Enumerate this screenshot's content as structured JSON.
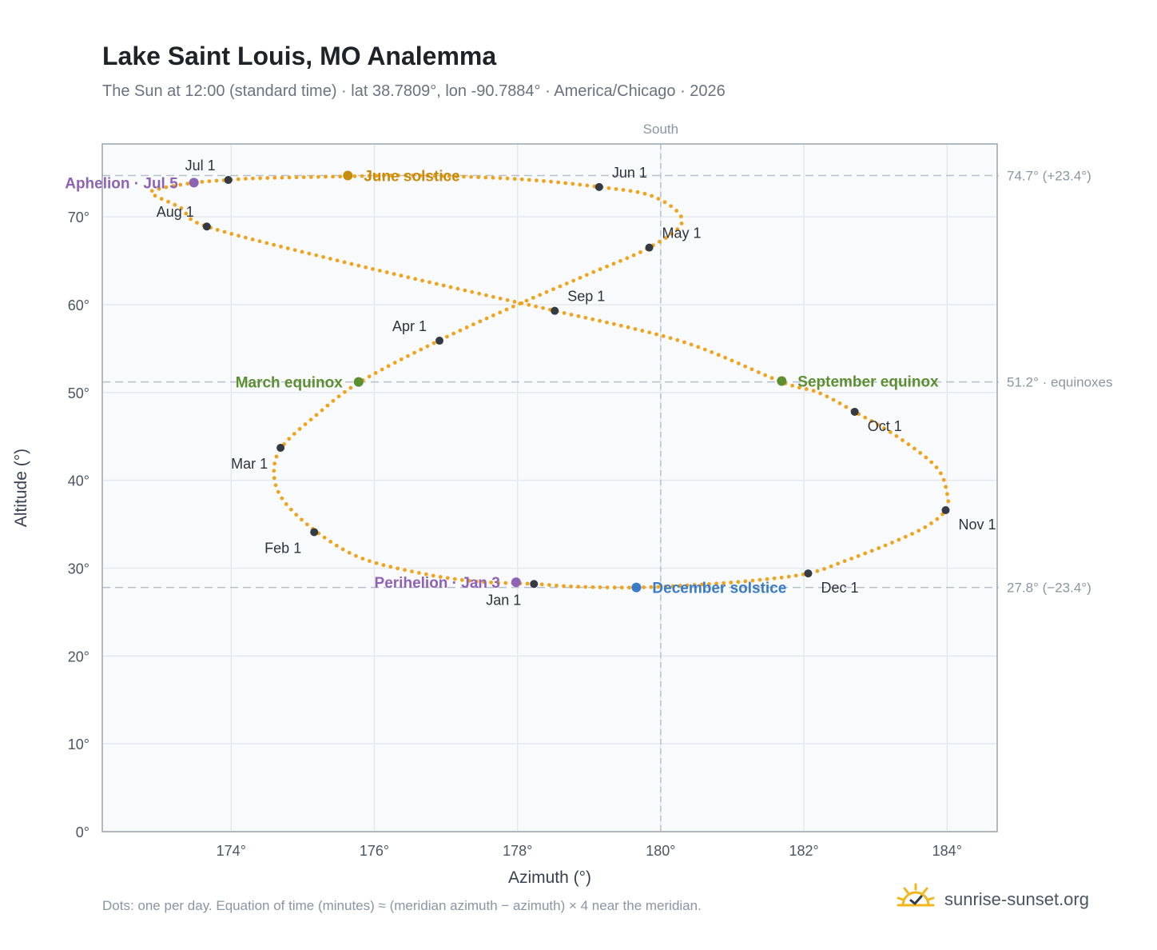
{
  "header": {
    "title": "Lake Saint Louis, MO Analemma",
    "subtitle": "The Sun at 12:00 (standard time) · lat 38.7809°, lon -90.7884° · America/Chicago · 2026"
  },
  "footer": {
    "note": "Dots: one per day. Equation of time (minutes) ≈ (meridian azimuth − azimuth) × 4 near the meridian.",
    "brand": "sunrise-sunset.org",
    "brand_icon": "sun-check-icon"
  },
  "colors": {
    "curve": "#f2a31c",
    "month_marker": "#333a44",
    "aphelion": "#8e63b5",
    "perihelion": "#8e63b5",
    "june_solstice": "#c98b0b",
    "equinox": "#5b8f2f",
    "december_solstice": "#3a7bc8",
    "guide": "#b8c0ca",
    "plot_bg": "#f8fafc",
    "grid": "#e5e9ee"
  },
  "chart_data": {
    "type": "scatter",
    "title": "Lake Saint Louis, MO Analemma",
    "xlabel": "Azimuth (°)",
    "ylabel": "Altitude (°)",
    "xlim": [
      172.2,
      184.7
    ],
    "ylim": [
      0,
      78.3
    ],
    "x_ticks": [
      174,
      176,
      178,
      180,
      182,
      184
    ],
    "x_tick_labels": [
      "174°",
      "176°",
      "178°",
      "180°",
      "182°",
      "184°"
    ],
    "y_ticks": [
      0,
      10,
      20,
      30,
      40,
      50,
      60,
      70
    ],
    "y_tick_labels": [
      "0°",
      "10°",
      "20°",
      "30°",
      "40°",
      "50°",
      "60°",
      "70°"
    ],
    "grid": true,
    "meridian": {
      "azimuth": 180,
      "label": "South"
    },
    "reference_lines": [
      {
        "altitude": 74.7,
        "label": "74.7° (+23.4°)"
      },
      {
        "altitude": 51.2,
        "label": "51.2° · equinoxes"
      },
      {
        "altitude": 27.8,
        "label": "27.8° (−23.4°)"
      }
    ],
    "curve_points": [
      [
        178.24,
        28.2
      ],
      [
        177.4,
        28.5
      ],
      [
        176.6,
        29.5
      ],
      [
        175.8,
        31.2
      ],
      [
        175.2,
        34.1
      ],
      [
        174.75,
        37.5
      ],
      [
        174.6,
        40.5
      ],
      [
        174.7,
        43.7
      ],
      [
        175.2,
        47.5
      ],
      [
        175.8,
        51.2
      ],
      [
        176.9,
        55.9
      ],
      [
        178.0,
        60.0
      ],
      [
        179.0,
        63.5
      ],
      [
        179.84,
        66.5
      ],
      [
        180.3,
        69.5
      ],
      [
        179.9,
        72.3
      ],
      [
        179.14,
        73.4
      ],
      [
        178.0,
        74.3
      ],
      [
        176.6,
        74.7
      ],
      [
        175.6,
        74.6
      ],
      [
        174.4,
        74.4
      ],
      [
        173.96,
        74.2
      ],
      [
        173.5,
        73.9
      ],
      [
        173.0,
        73.2
      ],
      [
        172.9,
        72.6
      ],
      [
        173.3,
        71.0
      ],
      [
        173.66,
        68.9
      ],
      [
        175.5,
        65.0
      ],
      [
        177.6,
        61.0
      ],
      [
        178.52,
        59.3
      ],
      [
        180.3,
        55.8
      ],
      [
        181.69,
        51.2
      ],
      [
        182.2,
        50.0
      ],
      [
        182.71,
        47.8
      ],
      [
        183.3,
        45.0
      ],
      [
        183.85,
        41.5
      ],
      [
        184.0,
        38.5
      ],
      [
        183.98,
        36.6
      ],
      [
        183.7,
        34.7
      ],
      [
        183.2,
        32.8
      ],
      [
        182.6,
        30.9
      ],
      [
        182.06,
        29.4
      ],
      [
        181.3,
        28.6
      ],
      [
        180.5,
        28.1
      ],
      [
        179.65,
        27.8
      ],
      [
        178.8,
        27.9
      ],
      [
        178.24,
        28.2
      ]
    ],
    "month_markers": [
      {
        "label": "Jan 1",
        "azimuth": 178.23,
        "altitude": 28.2,
        "anchor": "below-left"
      },
      {
        "label": "Feb 1",
        "azimuth": 175.16,
        "altitude": 34.1,
        "anchor": "below-left"
      },
      {
        "label": "Mar 1",
        "azimuth": 174.69,
        "altitude": 43.7,
        "anchor": "below-left"
      },
      {
        "label": "Apr 1",
        "azimuth": 176.91,
        "altitude": 55.9,
        "anchor": "above-left"
      },
      {
        "label": "May 1",
        "azimuth": 179.84,
        "altitude": 66.5,
        "anchor": "above-right"
      },
      {
        "label": "Jun 1",
        "azimuth": 179.14,
        "altitude": 73.4,
        "anchor": "above-right"
      },
      {
        "label": "Jul 1",
        "azimuth": 173.96,
        "altitude": 74.2,
        "anchor": "above-left"
      },
      {
        "label": "Aug 1",
        "azimuth": 173.66,
        "altitude": 68.9,
        "anchor": "above-left"
      },
      {
        "label": "Sep 1",
        "azimuth": 178.52,
        "altitude": 59.3,
        "anchor": "above-right"
      },
      {
        "label": "Oct 1",
        "azimuth": 182.71,
        "altitude": 47.8,
        "anchor": "below-right"
      },
      {
        "label": "Nov 1",
        "azimuth": 183.98,
        "altitude": 36.6,
        "anchor": "below-right"
      },
      {
        "label": "Dec 1",
        "azimuth": 182.06,
        "altitude": 29.4,
        "anchor": "below-right"
      }
    ],
    "events": [
      {
        "label": "June solstice",
        "azimuth": 175.63,
        "altitude": 74.7,
        "color_key": "june_solstice",
        "anchor": "right"
      },
      {
        "label": "March equinox",
        "azimuth": 175.78,
        "altitude": 51.2,
        "color_key": "equinox",
        "anchor": "left"
      },
      {
        "label": "September equinox",
        "azimuth": 181.69,
        "altitude": 51.3,
        "color_key": "equinox",
        "anchor": "right"
      },
      {
        "label": "December solstice",
        "azimuth": 179.66,
        "altitude": 27.8,
        "color_key": "december_solstice",
        "anchor": "right"
      },
      {
        "label": "Aphelion · Jul 5",
        "azimuth": 173.48,
        "altitude": 73.9,
        "color_key": "aphelion",
        "anchor": "left"
      },
      {
        "label": "Perihelion · Jan 3",
        "azimuth": 177.98,
        "altitude": 28.4,
        "color_key": "perihelion",
        "anchor": "left"
      }
    ]
  }
}
